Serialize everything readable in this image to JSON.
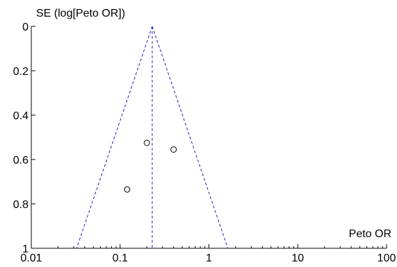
{
  "chart_data": {
    "type": "scatter",
    "subtype": "funnel-plot",
    "x_scale": "log",
    "y_inverted": true,
    "title": "",
    "xlabel": "Peto OR",
    "ylabel": "SE (log[Peto OR])",
    "xlim": [
      0.01,
      100
    ],
    "ylim": [
      0,
      1
    ],
    "x_ticks": [
      0.01,
      0.1,
      1,
      10,
      100
    ],
    "x_tick_labels": [
      "0.01",
      "0.1",
      "1",
      "10",
      "100"
    ],
    "y_ticks": [
      0,
      0.2,
      0.4,
      0.6,
      0.8,
      1
    ],
    "y_tick_labels": [
      "0",
      "0.2",
      "0.4",
      "0.6",
      "0.8",
      "1"
    ],
    "pooled_estimate": 0.23,
    "funnel_ci_multiplier": 1.96,
    "grid": false,
    "line_color": "#1f1fbf",
    "marker_color": "#000000",
    "series": [
      {
        "x": [
          0.2,
          0.4,
          0.12
        ],
        "y": [
          0.525,
          0.555,
          0.735
        ]
      }
    ]
  }
}
